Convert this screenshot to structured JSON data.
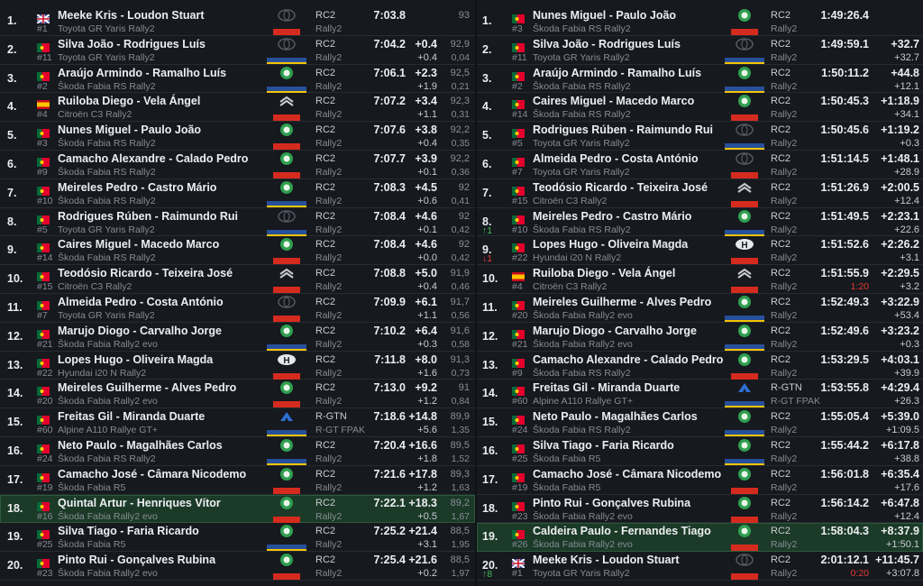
{
  "left": {
    "rows": [
      {
        "pos": "1.",
        "crew": "Meeke Kris - Loudon Stuart",
        "num": "#1",
        "car": "Toyota GR Yaris Rally2",
        "cls": "RC2",
        "cls2": "Rally2",
        "time": "7:03.8",
        "speed": "93"
      },
      {
        "pos": "2.",
        "crew": "Silva João - Rodrigues Luís",
        "num": "#11",
        "car": "Toyota GR Yaris Rally2",
        "cls": "RC2",
        "cls2": "Rally2",
        "time": "7:04.2",
        "diff": "+0.4",
        "speed": "92,9",
        "gap": "+0.4",
        "pct": "0,04"
      },
      {
        "pos": "3.",
        "crew": "Araújo Armindo - Ramalho Luís",
        "num": "#2",
        "car": "Škoda Fabia RS Rally2",
        "cls": "RC2",
        "cls2": "Rally2",
        "time": "7:06.1",
        "diff": "+2.3",
        "speed": "92,5",
        "gap": "+1.9",
        "pct": "0,21"
      },
      {
        "pos": "4.",
        "crew": "Ruiloba Diego - Vela Ángel",
        "num": "#4",
        "car": "Citroën C3 Rally2",
        "cls": "RC2",
        "cls2": "Rally2",
        "time": "7:07.2",
        "diff": "+3.4",
        "speed": "92,3",
        "gap": "+1.1",
        "pct": "0,31"
      },
      {
        "pos": "5.",
        "crew": "Nunes Miguel - Paulo João",
        "num": "#3",
        "car": "Škoda Fabia RS Rally2",
        "cls": "RC2",
        "cls2": "Rally2",
        "time": "7:07.6",
        "diff": "+3.8",
        "speed": "92,2",
        "gap": "+0.4",
        "pct": "0,35"
      },
      {
        "pos": "6.",
        "crew": "Camacho Alexandre - Calado Pedro",
        "num": "#9",
        "car": "Škoda Fabia RS Rally2",
        "cls": "RC2",
        "cls2": "Rally2",
        "time": "7:07.7",
        "diff": "+3.9",
        "speed": "92,2",
        "gap": "+0.1",
        "pct": "0,36"
      },
      {
        "pos": "7.",
        "crew": "Meireles Pedro - Castro Mário",
        "num": "#10",
        "car": "Škoda Fabia RS Rally2",
        "cls": "RC2",
        "cls2": "Rally2",
        "time": "7:08.3",
        "diff": "+4.5",
        "speed": "92",
        "gap": "+0.6",
        "pct": "0,41"
      },
      {
        "pos": "8.",
        "crew": "Rodrigues Rúben - Raimundo Rui",
        "num": "#5",
        "car": "Toyota GR Yaris Rally2",
        "cls": "RC2",
        "cls2": "Rally2",
        "time": "7:08.4",
        "diff": "+4.6",
        "speed": "92",
        "gap": "+0.1",
        "pct": "0,42"
      },
      {
        "pos": "9.",
        "crew": "Caires Miguel - Macedo Marco",
        "num": "#14",
        "car": "Škoda Fabia RS Rally2",
        "cls": "RC2",
        "cls2": "Rally2",
        "time": "7:08.4",
        "diff": "+4.6",
        "speed": "92",
        "gap": "+0.0",
        "pct": "0,42"
      },
      {
        "pos": "10.",
        "crew": "Teodósio Ricardo - Teixeira José",
        "num": "#15",
        "car": "Citroën C3 Rally2",
        "cls": "RC2",
        "cls2": "Rally2",
        "time": "7:08.8",
        "diff": "+5.0",
        "speed": "91,9",
        "gap": "+0.4",
        "pct": "0,46"
      },
      {
        "pos": "11.",
        "crew": "Almeida Pedro - Costa António",
        "num": "#7",
        "car": "Toyota GR Yaris Rally2",
        "cls": "RC2",
        "cls2": "Rally2",
        "time": "7:09.9",
        "diff": "+6.1",
        "speed": "91,7",
        "gap": "+1.1",
        "pct": "0,56"
      },
      {
        "pos": "12.",
        "crew": "Marujo Diogo - Carvalho Jorge",
        "num": "#21",
        "car": "Škoda Fabia Rally2 evo",
        "cls": "RC2",
        "cls2": "Rally2",
        "time": "7:10.2",
        "diff": "+6.4",
        "speed": "91,6",
        "gap": "+0.3",
        "pct": "0,58"
      },
      {
        "pos": "13.",
        "crew": "Lopes Hugo - Oliveira Magda",
        "num": "#22",
        "car": "Hyundai i20 N Rally2",
        "cls": "RC2",
        "cls2": "Rally2",
        "time": "7:11.8",
        "diff": "+8.0",
        "speed": "91,3",
        "gap": "+1.6",
        "pct": "0,73"
      },
      {
        "pos": "14.",
        "crew": "Meireles Guilherme - Alves Pedro",
        "num": "#20",
        "car": "Škoda Fabia Rally2 evo",
        "cls": "RC2",
        "cls2": "Rally2",
        "time": "7:13.0",
        "diff": "+9.2",
        "speed": "91",
        "gap": "+1.2",
        "pct": "0,84"
      },
      {
        "pos": "15.",
        "crew": "Freitas Gil - Miranda Duarte",
        "num": "#60",
        "car": "Alpine A110 Rallye GT+",
        "cls": "R-GTN",
        "cls2": "R-GT FPAK",
        "time": "7:18.6",
        "diff": "+14.8",
        "speed": "89,9",
        "gap": "+5.6",
        "pct": "1,35"
      },
      {
        "pos": "16.",
        "crew": "Neto Paulo - Magalhães Carlos",
        "num": "#24",
        "car": "Škoda Fabia RS Rally2",
        "cls": "RC2",
        "cls2": "Rally2",
        "time": "7:20.4",
        "diff": "+16.6",
        "speed": "89,5",
        "gap": "+1.8",
        "pct": "1,52"
      },
      {
        "pos": "17.",
        "crew": "Camacho José - Câmara Nicodemo",
        "num": "#19",
        "car": "Škoda Fabia R5",
        "cls": "RC2",
        "cls2": "Rally2",
        "time": "7:21.6",
        "diff": "+17.8",
        "speed": "89,3",
        "gap": "+1.2",
        "pct": "1,63"
      },
      {
        "pos": "18.",
        "crew": "Quintal Artur - Henriques Vítor",
        "num": "#16",
        "car": "Škoda Fabia Rally2 evo",
        "cls": "RC2",
        "cls2": "Rally2",
        "time": "7:22.1",
        "diff": "+18.3",
        "speed": "89,2",
        "gap": "+0.5",
        "pct": "1,67"
      },
      {
        "pos": "19.",
        "crew": "Silva Tiago - Faria Ricardo",
        "num": "#25",
        "car": "Škoda Fabia R5",
        "cls": "RC2",
        "cls2": "Rally2",
        "time": "7:25.2",
        "diff": "+21.4",
        "speed": "88,5",
        "gap": "+3.1",
        "pct": "1,95"
      },
      {
        "pos": "20.",
        "crew": "Pinto Rui - Gonçalves Rubina",
        "num": "#23",
        "car": "Škoda Fabia Rally2 evo",
        "cls": "RC2",
        "cls2": "Rally2",
        "time": "7:25.4",
        "diff": "+21.6",
        "speed": "88,5",
        "gap": "+0.2",
        "pct": "1,97"
      }
    ]
  },
  "right": {
    "rows": [
      {
        "pos": "1.",
        "crew": "Nunes Miguel - Paulo João",
        "num": "#3",
        "car": "Škoda Fabia RS Rally2",
        "cls": "RC2",
        "cls2": "Rally2",
        "time": "1:49:26.4"
      },
      {
        "pos": "2.",
        "crew": "Silva João - Rodrigues Luís",
        "num": "#11",
        "car": "Toyota GR Yaris Rally2",
        "cls": "RC2",
        "cls2": "Rally2",
        "time": "1:49:59.1",
        "diff": "+32.7",
        "gap": "+32.7"
      },
      {
        "pos": "3.",
        "crew": "Araújo Armindo - Ramalho Luís",
        "num": "#2",
        "car": "Škoda Fabia RS Rally2",
        "cls": "RC2",
        "cls2": "Rally2",
        "time": "1:50:11.2",
        "diff": "+44.8",
        "gap": "+12.1"
      },
      {
        "pos": "4.",
        "crew": "Caires Miguel - Macedo Marco",
        "num": "#14",
        "car": "Škoda Fabia RS Rally2",
        "cls": "RC2",
        "cls2": "Rally2",
        "time": "1:50:45.3",
        "diff": "+1:18.9",
        "gap": "+34.1"
      },
      {
        "pos": "5.",
        "crew": "Rodrigues Rúben - Raimundo Rui",
        "num": "#5",
        "car": "Toyota GR Yaris Rally2",
        "cls": "RC2",
        "cls2": "Rally2",
        "time": "1:50:45.6",
        "diff": "+1:19.2",
        "gap": "+0.3"
      },
      {
        "pos": "6.",
        "crew": "Almeida Pedro - Costa António",
        "num": "#7",
        "car": "Toyota GR Yaris Rally2",
        "cls": "RC2",
        "cls2": "Rally2",
        "time": "1:51:14.5",
        "diff": "+1:48.1",
        "gap": "+28.9"
      },
      {
        "pos": "7.",
        "crew": "Teodósio Ricardo - Teixeira José",
        "num": "#15",
        "car": "Citroën C3 Rally2",
        "cls": "RC2",
        "cls2": "Rally2",
        "time": "1:51:26.9",
        "diff": "+2:00.5",
        "gap": "+12.4"
      },
      {
        "pos": "8.",
        "crew": "Meireles Pedro - Castro Mário",
        "num": "#10",
        "car": "Škoda Fabia RS Rally2",
        "cls": "RC2",
        "cls2": "Rally2",
        "time": "1:51:49.5",
        "diff": "+2:23.1",
        "gap": "+22.6",
        "change": "↑1"
      },
      {
        "pos": "9.",
        "crew": "Lopes Hugo - Oliveira Magda",
        "num": "#22",
        "car": "Hyundai i20 N Rally2",
        "cls": "RC2",
        "cls2": "Rally2",
        "time": "1:51:52.6",
        "diff": "+2:26.2",
        "gap": "+3.1",
        "change": "↓1"
      },
      {
        "pos": "10.",
        "crew": "Ruiloba Diego - Vela Ángel",
        "num": "#4",
        "car": "Citroën C3 Rally2",
        "cls": "RC2",
        "cls2": "Rally2",
        "time": "1:51:55.9",
        "diff": "+2:29.5",
        "gap": "+3.2",
        "penalty": "1:20"
      },
      {
        "pos": "11.",
        "crew": "Meireles Guilherme - Alves Pedro",
        "num": "#20",
        "car": "Škoda Fabia Rally2 evo",
        "cls": "RC2",
        "cls2": "Rally2",
        "time": "1:52:49.3",
        "diff": "+3:22.9",
        "gap": "+53.4"
      },
      {
        "pos": "12.",
        "crew": "Marujo Diogo - Carvalho Jorge",
        "num": "#21",
        "car": "Škoda Fabia Rally2 evo",
        "cls": "RC2",
        "cls2": "Rally2",
        "time": "1:52:49.6",
        "diff": "+3:23.2",
        "gap": "+0.3"
      },
      {
        "pos": "13.",
        "crew": "Camacho Alexandre - Calado Pedro",
        "num": "#9",
        "car": "Škoda Fabia RS Rally2",
        "cls": "RC2",
        "cls2": "Rally2",
        "time": "1:53:29.5",
        "diff": "+4:03.1",
        "gap": "+39.9"
      },
      {
        "pos": "14.",
        "crew": "Freitas Gil - Miranda Duarte",
        "num": "#60",
        "car": "Alpine A110 Rallye GT+",
        "cls": "R-GTN",
        "cls2": "R-GT FPAK",
        "time": "1:53:55.8",
        "diff": "+4:29.4",
        "gap": "+26.3"
      },
      {
        "pos": "15.",
        "crew": "Neto Paulo - Magalhães Carlos",
        "num": "#24",
        "car": "Škoda Fabia RS Rally2",
        "cls": "RC2",
        "cls2": "Rally2",
        "time": "1:55:05.4",
        "diff": "+5:39.0",
        "gap": "+1:09.5"
      },
      {
        "pos": "16.",
        "crew": "Silva Tiago - Faria Ricardo",
        "num": "#25",
        "car": "Škoda Fabia R5",
        "cls": "RC2",
        "cls2": "Rally2",
        "time": "1:55:44.2",
        "diff": "+6:17.8",
        "gap": "+38.8"
      },
      {
        "pos": "17.",
        "crew": "Camacho José - Câmara Nicodemo",
        "num": "#19",
        "car": "Škoda Fabia R5",
        "cls": "RC2",
        "cls2": "Rally2",
        "time": "1:56:01.8",
        "diff": "+6:35.4",
        "gap": "+17.6"
      },
      {
        "pos": "18.",
        "crew": "Pinto Rui - Gonçalves Rubina",
        "num": "#23",
        "car": "Škoda Fabia Rally2 evo",
        "cls": "RC2",
        "cls2": "Rally2",
        "time": "1:56:14.2",
        "diff": "+6:47.8",
        "gap": "+12.4"
      },
      {
        "pos": "19.",
        "crew": "Caldeira Paulo - Fernandes Tiago",
        "num": "#26",
        "car": "Škoda Fabia Rally2 evo",
        "cls": "RC2",
        "cls2": "Rally2",
        "time": "1:58:04.3",
        "diff": "+8:37.9",
        "gap": "+1:50.1"
      },
      {
        "pos": "20.",
        "crew": "Meeke Kris - Loudon Stuart",
        "num": "#1",
        "car": "Toyota GR Yaris Rally2",
        "cls": "RC2",
        "cls2": "Rally2",
        "time": "2:01:12.1",
        "diff": "+11:45.7",
        "gap": "+3:07.8",
        "penalty": "0:20",
        "change": "↑8"
      }
    ]
  }
}
